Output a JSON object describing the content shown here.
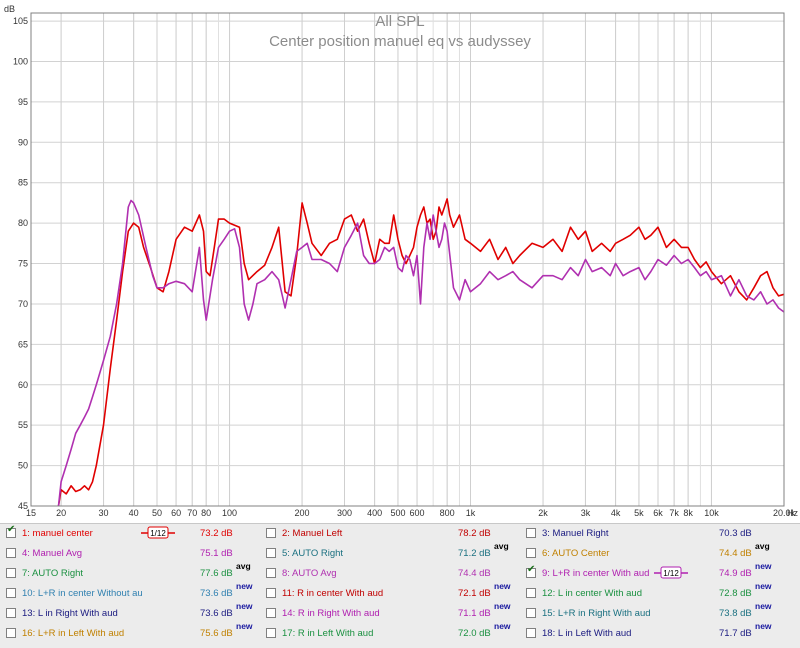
{
  "chart_data": {
    "type": "line",
    "title": "All SPL",
    "subtitle": "Center position manuel eq vs audyssey",
    "y_unit_label": "dB",
    "x_unit_label": "Hz",
    "x_scale": "log",
    "xlim": [
      15,
      20000
    ],
    "ylim": [
      45,
      106
    ],
    "y_ticks": [
      45,
      50,
      55,
      60,
      65,
      70,
      75,
      80,
      85,
      90,
      95,
      100,
      105
    ],
    "x_ticks": [
      {
        "v": 15,
        "label": "15"
      },
      {
        "v": 20,
        "label": "20"
      },
      {
        "v": 30,
        "label": "30"
      },
      {
        "v": 40,
        "label": "40"
      },
      {
        "v": 50,
        "label": "50"
      },
      {
        "v": 60,
        "label": "60"
      },
      {
        "v": 70,
        "label": "70"
      },
      {
        "v": 80,
        "label": "80"
      },
      {
        "v": 100,
        "label": "100"
      },
      {
        "v": 200,
        "label": "200"
      },
      {
        "v": 300,
        "label": "300"
      },
      {
        "v": 400,
        "label": "400"
      },
      {
        "v": 500,
        "label": "500"
      },
      {
        "v": 600,
        "label": "600"
      },
      {
        "v": 800,
        "label": "800"
      },
      {
        "v": 1000,
        "label": "1k"
      },
      {
        "v": 2000,
        "label": "2k"
      },
      {
        "v": 3000,
        "label": "3k"
      },
      {
        "v": 4000,
        "label": "4k"
      },
      {
        "v": 5000,
        "label": "5k"
      },
      {
        "v": 6000,
        "label": "6k"
      },
      {
        "v": 7000,
        "label": "7k"
      },
      {
        "v": 8000,
        "label": "8k"
      },
      {
        "v": 10000,
        "label": "10k"
      },
      {
        "v": 20000,
        "label": "20.0k"
      }
    ],
    "grid": true,
    "series": [
      {
        "name": "1: manuel center",
        "color": "#e00000",
        "points": [
          [
            19.5,
            45
          ],
          [
            20,
            47
          ],
          [
            21,
            46.5
          ],
          [
            22,
            47.5
          ],
          [
            23,
            46.8
          ],
          [
            24,
            47
          ],
          [
            25,
            47.5
          ],
          [
            26,
            47
          ],
          [
            27,
            48
          ],
          [
            28,
            50
          ],
          [
            30,
            55
          ],
          [
            32,
            62
          ],
          [
            34,
            68
          ],
          [
            36,
            74
          ],
          [
            38,
            79
          ],
          [
            40,
            80
          ],
          [
            42,
            79.5
          ],
          [
            44,
            77
          ],
          [
            47,
            74.5
          ],
          [
            50,
            72
          ],
          [
            53,
            71.5
          ],
          [
            56,
            74
          ],
          [
            60,
            78
          ],
          [
            65,
            79.5
          ],
          [
            70,
            79
          ],
          [
            75,
            81
          ],
          [
            78,
            79
          ],
          [
            80,
            74
          ],
          [
            83,
            73.5
          ],
          [
            86,
            76.5
          ],
          [
            90,
            80.5
          ],
          [
            95,
            80.5
          ],
          [
            100,
            80
          ],
          [
            110,
            79.5
          ],
          [
            115,
            75
          ],
          [
            120,
            73
          ],
          [
            130,
            74
          ],
          [
            140,
            74.8
          ],
          [
            150,
            77
          ],
          [
            160,
            79.5
          ],
          [
            170,
            71.5
          ],
          [
            180,
            71
          ],
          [
            190,
            76
          ],
          [
            200,
            82.5
          ],
          [
            210,
            80
          ],
          [
            220,
            77.5
          ],
          [
            240,
            76
          ],
          [
            260,
            77.5
          ],
          [
            280,
            78
          ],
          [
            300,
            80.5
          ],
          [
            320,
            81
          ],
          [
            340,
            79
          ],
          [
            360,
            80.5
          ],
          [
            380,
            77.5
          ],
          [
            400,
            75
          ],
          [
            420,
            78
          ],
          [
            440,
            77.5
          ],
          [
            460,
            77.5
          ],
          [
            480,
            81
          ],
          [
            500,
            78
          ],
          [
            520,
            76
          ],
          [
            540,
            75
          ],
          [
            560,
            76
          ],
          [
            580,
            77
          ],
          [
            600,
            79.5
          ],
          [
            620,
            81
          ],
          [
            640,
            82
          ],
          [
            660,
            80
          ],
          [
            680,
            80.5
          ],
          [
            700,
            78
          ],
          [
            720,
            79
          ],
          [
            740,
            82
          ],
          [
            760,
            81
          ],
          [
            780,
            82
          ],
          [
            800,
            83
          ],
          [
            820,
            81
          ],
          [
            850,
            79.5
          ],
          [
            900,
            81
          ],
          [
            950,
            78
          ],
          [
            1000,
            77.5
          ],
          [
            1100,
            76.5
          ],
          [
            1200,
            78
          ],
          [
            1300,
            75.5
          ],
          [
            1400,
            77
          ],
          [
            1500,
            75
          ],
          [
            1600,
            76
          ],
          [
            1800,
            77.5
          ],
          [
            2000,
            77
          ],
          [
            2200,
            78
          ],
          [
            2400,
            76.5
          ],
          [
            2600,
            79.5
          ],
          [
            2800,
            78
          ],
          [
            3000,
            79
          ],
          [
            3200,
            76.5
          ],
          [
            3500,
            77.5
          ],
          [
            3800,
            76.5
          ],
          [
            4000,
            77.5
          ],
          [
            4300,
            78
          ],
          [
            4600,
            78.5
          ],
          [
            5000,
            79.5
          ],
          [
            5300,
            78
          ],
          [
            5600,
            78.5
          ],
          [
            6000,
            79.5
          ],
          [
            6500,
            77
          ],
          [
            7000,
            78
          ],
          [
            7500,
            77
          ],
          [
            8000,
            77
          ],
          [
            8500,
            75.5
          ],
          [
            9000,
            74.5
          ],
          [
            9500,
            75.2
          ],
          [
            10000,
            74
          ],
          [
            11000,
            72.5
          ],
          [
            12000,
            73.5
          ],
          [
            13000,
            71.5
          ],
          [
            14000,
            70.5
          ],
          [
            15000,
            72
          ],
          [
            16000,
            73.5
          ],
          [
            17000,
            74
          ],
          [
            18000,
            72
          ],
          [
            19000,
            71
          ],
          [
            20000,
            71.2
          ]
        ]
      },
      {
        "name": "9: L+R in center With aud",
        "color": "#b030b0",
        "points": [
          [
            19.5,
            45
          ],
          [
            20,
            48
          ],
          [
            21,
            50
          ],
          [
            22,
            52
          ],
          [
            23,
            54
          ],
          [
            24,
            55
          ],
          [
            25,
            56
          ],
          [
            26,
            57
          ],
          [
            27,
            58.5
          ],
          [
            28,
            60
          ],
          [
            30,
            63
          ],
          [
            32,
            66
          ],
          [
            34,
            70
          ],
          [
            36,
            75
          ],
          [
            38,
            82
          ],
          [
            39,
            82.8
          ],
          [
            40,
            82.5
          ],
          [
            42,
            81
          ],
          [
            45,
            77
          ],
          [
            48,
            73.5
          ],
          [
            50,
            72
          ],
          [
            53,
            72
          ],
          [
            56,
            72.5
          ],
          [
            60,
            72.8
          ],
          [
            65,
            72.5
          ],
          [
            70,
            71.5
          ],
          [
            75,
            77
          ],
          [
            78,
            70.5
          ],
          [
            80,
            68
          ],
          [
            85,
            73
          ],
          [
            90,
            77
          ],
          [
            95,
            78
          ],
          [
            100,
            79
          ],
          [
            105,
            79.3
          ],
          [
            110,
            77
          ],
          [
            115,
            70
          ],
          [
            120,
            68
          ],
          [
            125,
            70
          ],
          [
            130,
            72.5
          ],
          [
            140,
            73
          ],
          [
            150,
            74
          ],
          [
            160,
            73
          ],
          [
            170,
            69.5
          ],
          [
            180,
            73
          ],
          [
            190,
            76.5
          ],
          [
            200,
            77
          ],
          [
            210,
            77.5
          ],
          [
            220,
            75.5
          ],
          [
            240,
            75.5
          ],
          [
            260,
            75
          ],
          [
            280,
            74
          ],
          [
            300,
            77
          ],
          [
            320,
            78.5
          ],
          [
            340,
            80
          ],
          [
            360,
            76
          ],
          [
            380,
            75
          ],
          [
            400,
            75
          ],
          [
            420,
            75.5
          ],
          [
            440,
            77
          ],
          [
            460,
            76.5
          ],
          [
            480,
            77
          ],
          [
            500,
            74.5
          ],
          [
            520,
            74
          ],
          [
            540,
            76
          ],
          [
            560,
            75.5
          ],
          [
            580,
            73.5
          ],
          [
            600,
            76
          ],
          [
            620,
            70
          ],
          [
            640,
            77
          ],
          [
            660,
            80
          ],
          [
            680,
            78
          ],
          [
            700,
            81
          ],
          [
            720,
            79
          ],
          [
            740,
            77
          ],
          [
            760,
            78
          ],
          [
            780,
            80
          ],
          [
            800,
            79
          ],
          [
            850,
            72
          ],
          [
            900,
            70.5
          ],
          [
            950,
            73
          ],
          [
            1000,
            71.5
          ],
          [
            1100,
            72.5
          ],
          [
            1200,
            74
          ],
          [
            1300,
            73
          ],
          [
            1400,
            73.5
          ],
          [
            1500,
            74
          ],
          [
            1600,
            73
          ],
          [
            1800,
            72
          ],
          [
            2000,
            73.5
          ],
          [
            2200,
            73.5
          ],
          [
            2400,
            73
          ],
          [
            2600,
            74.5
          ],
          [
            2800,
            73.5
          ],
          [
            3000,
            75.5
          ],
          [
            3200,
            74
          ],
          [
            3500,
            74.5
          ],
          [
            3800,
            73.5
          ],
          [
            4000,
            75
          ],
          [
            4300,
            73.5
          ],
          [
            4600,
            74
          ],
          [
            5000,
            74.5
          ],
          [
            5300,
            73
          ],
          [
            5600,
            74
          ],
          [
            6000,
            75.5
          ],
          [
            6500,
            74.8
          ],
          [
            7000,
            76
          ],
          [
            7500,
            75
          ],
          [
            8000,
            75.5
          ],
          [
            8500,
            74.5
          ],
          [
            9000,
            73.5
          ],
          [
            9500,
            74
          ],
          [
            10000,
            73
          ],
          [
            11000,
            73.5
          ],
          [
            12000,
            71
          ],
          [
            13000,
            73
          ],
          [
            14000,
            71
          ],
          [
            15000,
            70.5
          ],
          [
            16000,
            71.5
          ],
          [
            17000,
            70
          ],
          [
            18000,
            70.5
          ],
          [
            19000,
            69.5
          ],
          [
            20000,
            69
          ]
        ]
      }
    ]
  },
  "legend": [
    [
      {
        "label": "1: manuel center",
        "value": "73.2 dB",
        "color": "#e00000",
        "checked": true,
        "smooth": "1/12"
      },
      {
        "label": "2: Manuel Left",
        "value": "78.2 dB",
        "color": "#c00000",
        "checked": false
      },
      {
        "label": "3: Manuel Right",
        "value": "70.3 dB",
        "color": "#1a1a80",
        "checked": false
      }
    ],
    [
      {
        "label": "4: Manuel Avg",
        "value": "75.1 dB",
        "color": "#b020b0",
        "checked": false
      },
      {
        "label": "5: AUTO Right",
        "value": "71.2 dB",
        "tag": "avg",
        "color": "#1a7080",
        "checked": false
      },
      {
        "label": "6: AUTO Center",
        "value": "74.4 dB",
        "tag": "avg",
        "color": "#c08000",
        "checked": false
      }
    ],
    [
      {
        "label": "7: AUTO Right",
        "value": "77.6 dB",
        "tag": "avg",
        "color": "#1a9040",
        "checked": false
      },
      {
        "label": "8: AUTO Avg",
        "value": "74.4 dB",
        "color": "#b030b0",
        "checked": false
      },
      {
        "label": "9: L+R in center With aud",
        "value": "74.9 dB",
        "tag": "new",
        "color": "#b020b0",
        "checked": true,
        "smooth": "1/12"
      }
    ],
    [
      {
        "label": "10: L+R in center Without au",
        "value": "73.6 dB",
        "tag": "new",
        "color": "#3080b0",
        "checked": false
      },
      {
        "label": "11: R in center With aud",
        "value": "72.1 dB",
        "tag": "new",
        "color": "#c00000",
        "checked": false
      },
      {
        "label": "12: L in  center With aud",
        "value": "72.8 dB",
        "tag": "new",
        "color": "#1a9040",
        "checked": false
      }
    ],
    [
      {
        "label": "13: L in Right With aud",
        "value": "73.6 dB",
        "tag": "new",
        "color": "#1a1a80",
        "checked": false
      },
      {
        "label": "14: R in Right With aud",
        "value": "71.1 dB",
        "tag": "new",
        "color": "#b020b0",
        "checked": false
      },
      {
        "label": "15: L+R in Right With aud",
        "value": "73.8 dB",
        "tag": "new",
        "color": "#1a7080",
        "checked": false
      }
    ],
    [
      {
        "label": "16: L+R in Left With aud",
        "value": "75.6 dB",
        "tag": "new",
        "color": "#c08000",
        "checked": false
      },
      {
        "label": "17: R in Left With aud",
        "value": "72.0 dB",
        "tag": "new",
        "color": "#1a9040",
        "checked": false
      },
      {
        "label": "18: L in Left With aud",
        "value": "71.7 dB",
        "tag": "new",
        "color": "#1a1a80",
        "checked": false
      }
    ]
  ]
}
